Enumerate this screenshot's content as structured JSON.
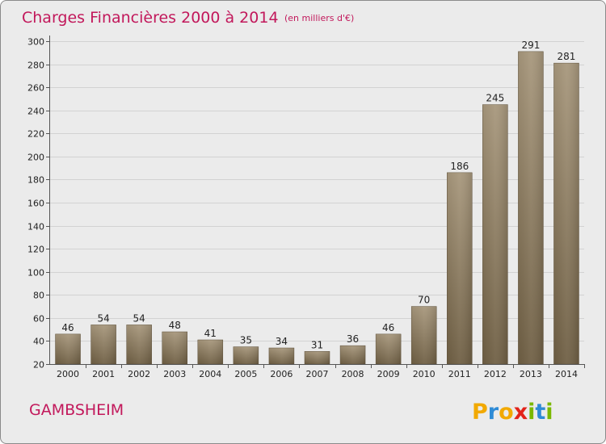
{
  "chart_data": {
    "type": "bar",
    "title": "Charges Financières 2000 à 2014",
    "subtitle": "(en milliers d'€)",
    "categories": [
      "2000",
      "2001",
      "2002",
      "2003",
      "2004",
      "2005",
      "2006",
      "2007",
      "2008",
      "2009",
      "2010",
      "2011",
      "2012",
      "2013",
      "2014"
    ],
    "values": [
      46,
      54,
      54,
      48,
      41,
      35,
      34,
      31,
      36,
      46,
      70,
      186,
      245,
      291,
      281
    ],
    "ylim": [
      20,
      300
    ],
    "yticks": [
      20,
      40,
      60,
      80,
      100,
      120,
      140,
      160,
      180,
      200,
      220,
      240,
      260,
      280,
      300
    ],
    "grid": true,
    "bar_color": "#8b7a5e",
    "label_color": "#c2185b"
  },
  "footer": {
    "location": "GAMBSHEIM",
    "brand_letters": [
      "P",
      "r",
      "o",
      "x",
      "i",
      "t",
      "i"
    ],
    "brand_colors": [
      "#f2a900",
      "#2e8bd6",
      "#f2a900",
      "#e2231a",
      "#7ab800",
      "#2e8bd6",
      "#7ab800"
    ]
  }
}
